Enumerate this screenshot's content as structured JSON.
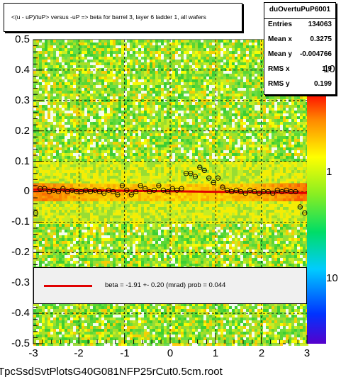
{
  "title": "<(u - uP)/tuP> versus  -uP => beta for barrel 3, layer 6 ladder 1, all wafers",
  "stats": {
    "name": "duOvertuPuP6001",
    "rows": [
      {
        "label": "Entries",
        "value": "134063"
      },
      {
        "label": "Mean x",
        "value": "0.3275"
      },
      {
        "label": "Mean y",
        "value": "-0.004766"
      },
      {
        "label": "RMS x",
        "value": "1.9"
      },
      {
        "label": "RMS y",
        "value": "0.199"
      }
    ]
  },
  "fit_legend": "beta =   -1.91 +-  0.20 (mrad) prob = 0.044",
  "footer": "TpcSsdSvtPlotsG40G081NFP25rCut0.5cm.root",
  "colors": {
    "fit": "#e00000",
    "heat_low": "#33cc33",
    "heat_mid": "#ffff00",
    "heat_high": "#ff3300"
  },
  "chart_data": {
    "type": "heatmap",
    "title": "<(u - uP)/tuP> versus  -uP => beta for barrel 3, layer 6 ladder 1, all wafers",
    "xlim": [
      -3,
      3
    ],
    "ylim": [
      -0.5,
      0.5
    ],
    "x_ticks": [
      "-3",
      "-2",
      "-1",
      "0",
      "1",
      "2",
      "3"
    ],
    "y_ticks": [
      "-0.5",
      "-0.4",
      "-0.3",
      "-0.2",
      "-0.1",
      "0",
      "0.1",
      "0.2",
      "0.3",
      "0.4",
      "0.5"
    ],
    "z_ticks": [
      "1",
      "10",
      "10"
    ],
    "z_scale": "log",
    "grid": true,
    "fit": {
      "beta_mrad": -1.91,
      "error_mrad": 0.2,
      "prob": 0.044,
      "line": [
        [
          -3,
          0.007
        ],
        [
          3,
          -0.004
        ]
      ]
    },
    "profile_points": {
      "x": [
        -2.95,
        -2.85,
        -2.75,
        -2.65,
        -2.55,
        -2.45,
        -2.35,
        -2.25,
        -2.15,
        -2.05,
        -1.95,
        -1.85,
        -1.75,
        -1.65,
        -1.55,
        -1.45,
        -1.35,
        -1.25,
        -1.15,
        -1.05,
        -0.95,
        -0.85,
        -0.75,
        -0.65,
        -0.55,
        -0.45,
        -0.35,
        -0.25,
        -0.15,
        -0.05,
        0.05,
        0.15,
        0.25,
        0.35,
        0.45,
        0.55,
        0.65,
        0.75,
        0.85,
        0.95,
        1.05,
        1.15,
        1.25,
        1.35,
        1.45,
        1.55,
        1.65,
        1.75,
        1.85,
        1.95,
        2.05,
        2.15,
        2.25,
        2.35,
        2.45,
        2.55,
        2.65,
        2.75,
        2.85,
        2.95
      ],
      "y": [
        -0.07,
        0.01,
        0.01,
        0.0,
        0.005,
        0.0,
        0.01,
        0.0,
        0.005,
        0.0,
        0.0,
        0.005,
        0.0,
        0.005,
        0.0,
        -0.005,
        0.005,
        0.0,
        -0.01,
        0.02,
        0.005,
        -0.01,
        0.0,
        0.02,
        0.01,
        0.0,
        0.005,
        0.02,
        0.005,
        0.0,
        0.01,
        0.005,
        0.01,
        0.06,
        0.06,
        0.05,
        0.08,
        0.07,
        0.045,
        0.03,
        0.045,
        0.015,
        0.005,
        0.0,
        0.005,
        0.0,
        -0.005,
        0.005,
        0.0,
        -0.005,
        0.0,
        0.0,
        -0.005,
        0.005,
        0.0,
        0.005,
        0.0,
        0.0,
        -0.05,
        -0.07
      ]
    }
  }
}
